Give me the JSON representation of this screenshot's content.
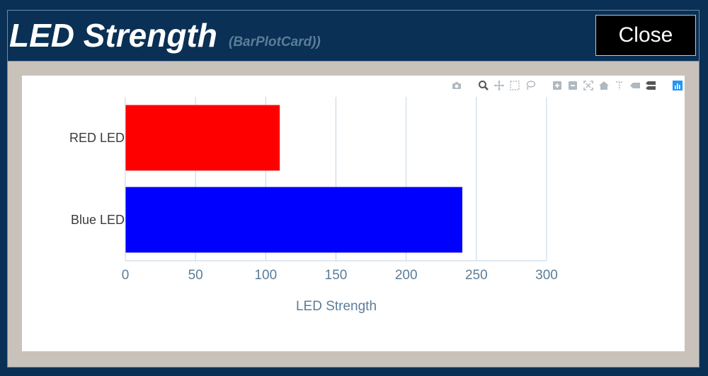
{
  "header": {
    "title": "LED Strength",
    "subtitle": "(BarPlotCard))",
    "close_label": "Close"
  },
  "modebar": {
    "icons": [
      "camera-icon",
      "zoom-icon",
      "pan-icon",
      "box-select-icon",
      "lasso-select-icon",
      "zoom-in-icon",
      "zoom-out-icon",
      "autoscale-icon",
      "reset-axes-icon",
      "spike-lines-icon",
      "hover-closest-icon",
      "hover-compare-icon",
      "plotly-logo-icon"
    ]
  },
  "chart_data": {
    "type": "bar",
    "orientation": "horizontal",
    "categories": [
      "RED LED",
      "Blue LED"
    ],
    "values": [
      110,
      240
    ],
    "colors": [
      "#ff0000",
      "#0000ff"
    ],
    "xlabel": "LED Strength",
    "ylabel": "",
    "xlim": [
      0,
      300
    ],
    "xticks": [
      "0",
      "50",
      "100",
      "150",
      "200",
      "250",
      "300"
    ],
    "grid": "vertical"
  }
}
